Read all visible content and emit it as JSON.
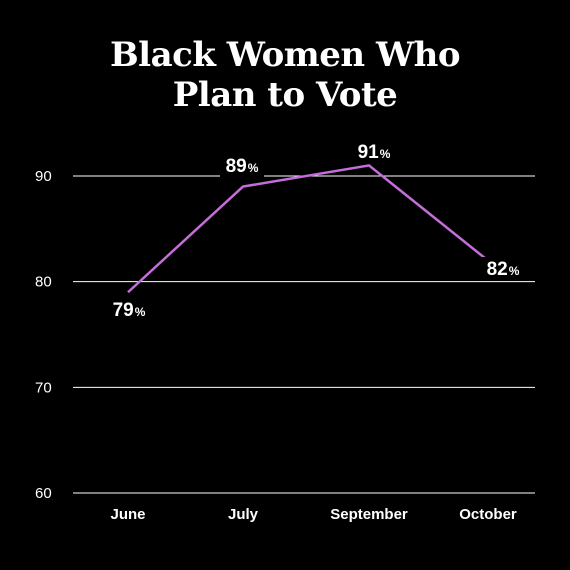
{
  "chart_data": {
    "type": "line",
    "title_lines": [
      "Black Women Who",
      "Plan to Vote"
    ],
    "categories": [
      "June",
      "July",
      "September",
      "October"
    ],
    "series": [
      {
        "values": [
          79,
          89,
          91,
          82
        ],
        "color": "#c46ddb"
      }
    ],
    "labels": [
      "79",
      "89",
      "91",
      "82"
    ],
    "label_suffix": "%",
    "yticks": [
      60,
      70,
      80,
      90
    ],
    "ytick_labels": [
      "60",
      "70",
      "80",
      "90"
    ],
    "ylim": [
      60,
      94
    ],
    "grid": true,
    "colors": {
      "background": "#000000",
      "text": "#ffffff",
      "grid": "#ffffff",
      "line": "#c46ddb"
    }
  }
}
